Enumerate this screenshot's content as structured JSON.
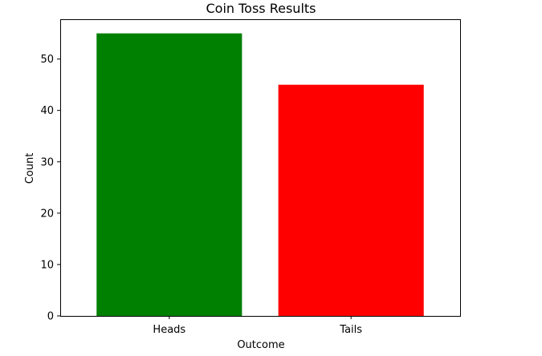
{
  "chart_data": {
    "type": "bar",
    "title": "Coin Toss Results",
    "xlabel": "Outcome",
    "ylabel": "Count",
    "categories": [
      "Heads",
      "Tails"
    ],
    "values": [
      55,
      45
    ],
    "colors": [
      "#008000",
      "#ff0000"
    ],
    "ylim": [
      0,
      57.75
    ],
    "yticks": [
      0,
      10,
      20,
      30,
      40,
      50
    ],
    "grid": false
  }
}
